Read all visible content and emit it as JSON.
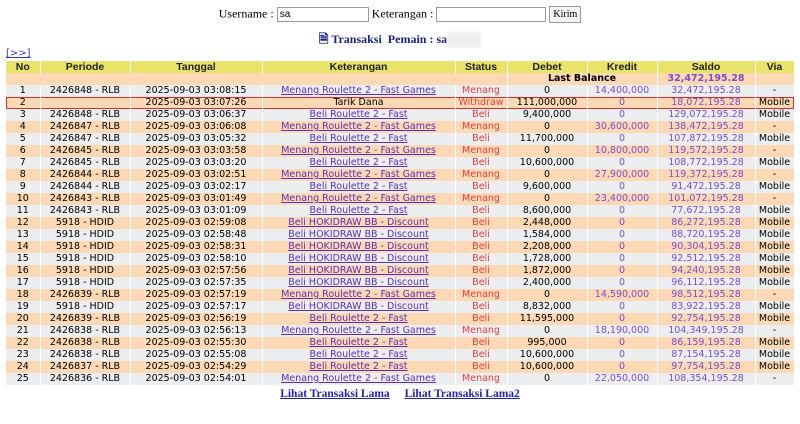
{
  "form": {
    "username_label": "Username :",
    "username_value": "sa",
    "keterangan_label": "Keterangan :",
    "keterangan_value": "",
    "submit_label": "Kirim"
  },
  "title": {
    "label": "Transaksi",
    "pemain_label": "Pemain : sa"
  },
  "next_link": "[>>]",
  "columns": [
    "No",
    "Periode",
    "Tanggal",
    "Keterangan",
    "Status",
    "Debet",
    "Kredit",
    "Saldo",
    "Via"
  ],
  "last_balance": {
    "label": "Last Balance",
    "value": "32,472,195.28"
  },
  "rows": [
    {
      "no": "1",
      "periode": "2426848 - RLB",
      "tanggal": "2025-09-03 03:08:15",
      "ket": "Menang Roulette 2 - Fast Games",
      "link": true,
      "status": "Menang",
      "debet": "0",
      "kredit": "14,400,000",
      "saldo": "32,472,195.28",
      "via": "-"
    },
    {
      "no": "2",
      "periode": "",
      "tanggal": "2025-09-03 03:07:26",
      "ket": "Tarik Dana",
      "link": false,
      "status": "Withdraw",
      "debet": "111,000,000",
      "kredit": "0",
      "saldo": "18,072,195.28",
      "via": "Mobile",
      "highlight": true
    },
    {
      "no": "3",
      "periode": "2426848 - RLB",
      "tanggal": "2025-09-03 03:06:37",
      "ket": "Beli Roulette 2 - Fast",
      "link": true,
      "status": "Beli",
      "debet": "9,400,000",
      "kredit": "0",
      "saldo": "129,072,195.28",
      "via": "Mobile"
    },
    {
      "no": "4",
      "periode": "2426847 - RLB",
      "tanggal": "2025-09-03 03:06:08",
      "ket": "Menang Roulette 2 - Fast Games",
      "link": true,
      "status": "Menang",
      "debet": "0",
      "kredit": "30,600,000",
      "saldo": "138,472,195.28",
      "via": "-"
    },
    {
      "no": "5",
      "periode": "2426847 - RLB",
      "tanggal": "2025-09-03 03:05:32",
      "ket": "Beli Roulette 2 - Fast",
      "link": true,
      "status": "Beli",
      "debet": "11,700,000",
      "kredit": "0",
      "saldo": "107,872,195.28",
      "via": "Mobile"
    },
    {
      "no": "6",
      "periode": "2426845 - RLB",
      "tanggal": "2025-09-03 03:03:58",
      "ket": "Menang Roulette 2 - Fast Games",
      "link": true,
      "status": "Menang",
      "debet": "0",
      "kredit": "10,800,000",
      "saldo": "119,572,195.28",
      "via": "-"
    },
    {
      "no": "7",
      "periode": "2426845 - RLB",
      "tanggal": "2025-09-03 03:03:20",
      "ket": "Beli Roulette 2 - Fast",
      "link": true,
      "status": "Beli",
      "debet": "10,600,000",
      "kredit": "0",
      "saldo": "108,772,195.28",
      "via": "Mobile"
    },
    {
      "no": "8",
      "periode": "2426844 - RLB",
      "tanggal": "2025-09-03 03:02:51",
      "ket": "Menang Roulette 2 - Fast Games",
      "link": true,
      "status": "Menang",
      "debet": "0",
      "kredit": "27,900,000",
      "saldo": "119,372,195.28",
      "via": "-"
    },
    {
      "no": "9",
      "periode": "2426844 - RLB",
      "tanggal": "2025-09-03 03:02:17",
      "ket": "Beli Roulette 2 - Fast",
      "link": true,
      "status": "Beli",
      "debet": "9,600,000",
      "kredit": "0",
      "saldo": "91,472,195.28",
      "via": "Mobile"
    },
    {
      "no": "10",
      "periode": "2426843 - RLB",
      "tanggal": "2025-09-03 03:01:49",
      "ket": "Menang Roulette 2 - Fast Games",
      "link": true,
      "status": "Menang",
      "debet": "0",
      "kredit": "23,400,000",
      "saldo": "101,072,195.28",
      "via": "-"
    },
    {
      "no": "11",
      "periode": "2426843 - RLB",
      "tanggal": "2025-09-03 03:01:09",
      "ket": "Beli Roulette 2 - Fast",
      "link": true,
      "status": "Beli",
      "debet": "8,600,000",
      "kredit": "0",
      "saldo": "77,672,195.28",
      "via": "Mobile"
    },
    {
      "no": "12",
      "periode": "5918 - HDID",
      "tanggal": "2025-09-03 02:59:08",
      "ket": "Beli HOKIDRAW BB - Discount",
      "link": true,
      "status": "Beli",
      "debet": "2,448,000",
      "kredit": "0",
      "saldo": "86,272,195.28",
      "via": "Mobile"
    },
    {
      "no": "13",
      "periode": "5918 - HDID",
      "tanggal": "2025-09-03 02:58:48",
      "ket": "Beli HOKIDRAW BB - Discount",
      "link": true,
      "status": "Beli",
      "debet": "1,584,000",
      "kredit": "0",
      "saldo": "88,720,195.28",
      "via": "Mobile"
    },
    {
      "no": "14",
      "periode": "5918 - HDID",
      "tanggal": "2025-09-03 02:58:31",
      "ket": "Beli HOKIDRAW BB - Discount",
      "link": true,
      "status": "Beli",
      "debet": "2,208,000",
      "kredit": "0",
      "saldo": "90,304,195.28",
      "via": "Mobile"
    },
    {
      "no": "15",
      "periode": "5918 - HDID",
      "tanggal": "2025-09-03 02:58:10",
      "ket": "Beli HOKIDRAW BB - Discount",
      "link": true,
      "status": "Beli",
      "debet": "1,728,000",
      "kredit": "0",
      "saldo": "92,512,195.28",
      "via": "Mobile"
    },
    {
      "no": "16",
      "periode": "5918 - HDID",
      "tanggal": "2025-09-03 02:57:56",
      "ket": "Beli HOKIDRAW BB - Discount",
      "link": true,
      "status": "Beli",
      "debet": "1,872,000",
      "kredit": "0",
      "saldo": "94,240,195.28",
      "via": "Mobile"
    },
    {
      "no": "17",
      "periode": "5918 - HDID",
      "tanggal": "2025-09-03 02:57:35",
      "ket": "Beli HOKIDRAW BB - Discount",
      "link": true,
      "status": "Beli",
      "debet": "2,400,000",
      "kredit": "0",
      "saldo": "96,112,195.28",
      "via": "Mobile"
    },
    {
      "no": "18",
      "periode": "2426839 - RLB",
      "tanggal": "2025-09-03 02:57:19",
      "ket": "Menang Roulette 2 - Fast Games",
      "link": true,
      "status": "Menang",
      "debet": "0",
      "kredit": "14,590,000",
      "saldo": "98,512,195.28",
      "via": "-"
    },
    {
      "no": "19",
      "periode": "5918 - HDID",
      "tanggal": "2025-09-03 02:57:17",
      "ket": "Beli HOKIDRAW BB - Discount",
      "link": true,
      "status": "Beli",
      "debet": "8,832,000",
      "kredit": "0",
      "saldo": "83,922,195.28",
      "via": "Mobile"
    },
    {
      "no": "20",
      "periode": "2426839 - RLB",
      "tanggal": "2025-09-03 02:56:19",
      "ket": "Beli Roulette 2 - Fast",
      "link": true,
      "status": "Beli",
      "debet": "11,595,000",
      "kredit": "0",
      "saldo": "92,754,195.28",
      "via": "Mobile"
    },
    {
      "no": "21",
      "periode": "2426838 - RLB",
      "tanggal": "2025-09-03 02:56:13",
      "ket": "Menang Roulette 2 - Fast Games",
      "link": true,
      "status": "Menang",
      "debet": "0",
      "kredit": "18,190,000",
      "saldo": "104,349,195.28",
      "via": "-"
    },
    {
      "no": "22",
      "periode": "2426838 - RLB",
      "tanggal": "2025-09-03 02:55:30",
      "ket": "Beli Roulette 2 - Fast",
      "link": true,
      "status": "Beli",
      "debet": "995,000",
      "kredit": "0",
      "saldo": "86,159,195.28",
      "via": "Mobile"
    },
    {
      "no": "23",
      "periode": "2426838 - RLB",
      "tanggal": "2025-09-03 02:55:08",
      "ket": "Beli Roulette 2 - Fast",
      "link": true,
      "status": "Beli",
      "debet": "10,600,000",
      "kredit": "0",
      "saldo": "87,154,195.28",
      "via": "Mobile"
    },
    {
      "no": "24",
      "periode": "2426837 - RLB",
      "tanggal": "2025-09-03 02:54:29",
      "ket": "Beli Roulette 2 - Fast",
      "link": true,
      "status": "Beli",
      "debet": "10,600,000",
      "kredit": "0",
      "saldo": "97,754,195.28",
      "via": "Mobile"
    },
    {
      "no": "25",
      "periode": "2426836 - RLB",
      "tanggal": "2025-09-03 02:54:01",
      "ket": "Menang Roulette 2 - Fast Games",
      "link": true,
      "status": "Menang",
      "debet": "0",
      "kredit": "22,050,000",
      "saldo": "108,354,195.28",
      "via": "-"
    }
  ],
  "footer": {
    "link1": "Lihat Transaksi Lama",
    "link2": "Lihat Transaksi Lama2"
  },
  "colors": {
    "header": "#e8e46a",
    "row_even": "#fcd9b4",
    "row_odd": "#eceef0",
    "status": "#e04040",
    "amount": "#7c4dcc",
    "highlight": "#d32f2f"
  }
}
